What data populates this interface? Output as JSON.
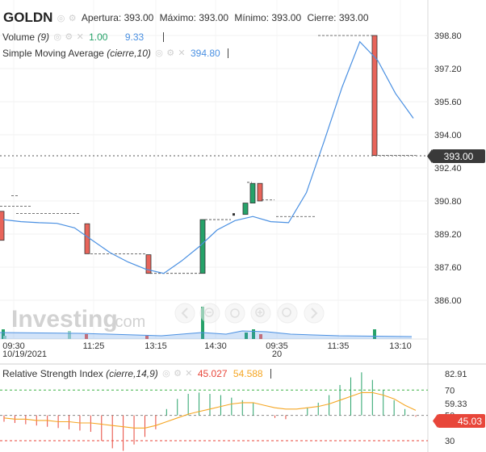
{
  "header": {
    "symbol": "GOLDN",
    "open_label": "Apertura:",
    "open_value": "393.00",
    "high_label": "Máximo:",
    "high_value": "393.00",
    "low_label": "Mínimo:",
    "low_value": "393.00",
    "close_label": "Cierre:",
    "close_value": "393.00"
  },
  "volume_legend": {
    "label": "Volume",
    "param": "(9)",
    "value_a": "1.00",
    "value_b": "9.33"
  },
  "sma_legend": {
    "label": "Simple Moving Average",
    "param": "(cierre,10)",
    "value": "394.80"
  },
  "rsi_legend": {
    "label": "Relative Strength Index",
    "param": "(cierre,14,9)",
    "value_a": "45.027",
    "value_b": "54.588"
  },
  "watermark": {
    "brand": "Investing",
    "suffix": ".com"
  },
  "colors": {
    "up": "#26a269",
    "down": "#e8645a",
    "sma": "#4a90e2",
    "rsi_signal": "#f5a623",
    "volume": "#9fd6c2",
    "price_tag": "#3a3a3a",
    "rsi_tag": "#e8463a"
  },
  "icons": [
    "eye-icon",
    "gear-icon",
    "close-icon",
    "zoom-out-icon",
    "zoom-in-icon",
    "scroll-left-icon",
    "scroll-right-icon",
    "reset-icon"
  ],
  "chart_data": [
    {
      "type": "candlestick",
      "title": "GOLDN",
      "y_ticks": [
        "398.80",
        "397.20",
        "395.60",
        "394.00",
        "392.40",
        "390.80",
        "389.20",
        "387.60",
        "386.00"
      ],
      "current_price_label": "393.00",
      "x_ticks": [
        "09:30",
        "11:25",
        "13:15",
        "14:30",
        "09:35",
        "11:35",
        "13:10"
      ],
      "x_sub_labels": [
        "10/19/2021",
        "20"
      ],
      "ylim": [
        385.0,
        399.5
      ],
      "candles": [
        {
          "open": 390.3,
          "close": 388.9
        },
        {
          "open": 389.7,
          "close": 388.25
        },
        {
          "open": 388.2,
          "close": 387.3
        },
        {
          "open": 387.3,
          "close": 389.9
        },
        {
          "open": 390.15,
          "close": 390.7
        },
        {
          "open": 390.7,
          "close": 391.65
        },
        {
          "open": 391.65,
          "close": 390.8
        },
        {
          "open": 398.8,
          "close": 393.0
        }
      ],
      "sma": [
        389.9,
        389.8,
        389.75,
        389.72,
        389.5,
        388.9,
        388.3,
        387.85,
        387.5,
        387.3,
        387.9,
        388.6,
        389.4,
        389.85,
        390.05,
        389.8,
        389.75,
        391.2,
        393.7,
        396.3,
        398.5,
        397.6,
        396.0,
        394.8
      ]
    },
    {
      "type": "line",
      "title": "Relative Strength Index",
      "y_ticks": [
        "82.91",
        "70",
        "59.33",
        "50",
        "30"
      ],
      "ylim": [
        20,
        85
      ],
      "current_value_label": "45.03",
      "series": [
        {
          "name": "RSI",
          "values": [
            45,
            44,
            43,
            42,
            41,
            40,
            39,
            38,
            37,
            30,
            24,
            22,
            27,
            33,
            39,
            55,
            63,
            67,
            68,
            67,
            66,
            64,
            62,
            60,
            50,
            48,
            47,
            50,
            56,
            60,
            66,
            74,
            80,
            84,
            78,
            70,
            62,
            55,
            49
          ]
        },
        {
          "name": "Signal",
          "values": [
            48,
            47,
            47,
            46,
            46,
            45,
            45,
            44,
            44,
            43,
            42,
            41,
            40,
            40,
            42,
            45,
            48,
            51,
            53,
            55,
            57,
            59,
            60,
            60,
            58,
            56,
            55,
            55,
            56,
            57,
            59,
            62,
            65,
            68,
            68,
            66,
            63,
            58,
            54
          ]
        }
      ]
    }
  ]
}
